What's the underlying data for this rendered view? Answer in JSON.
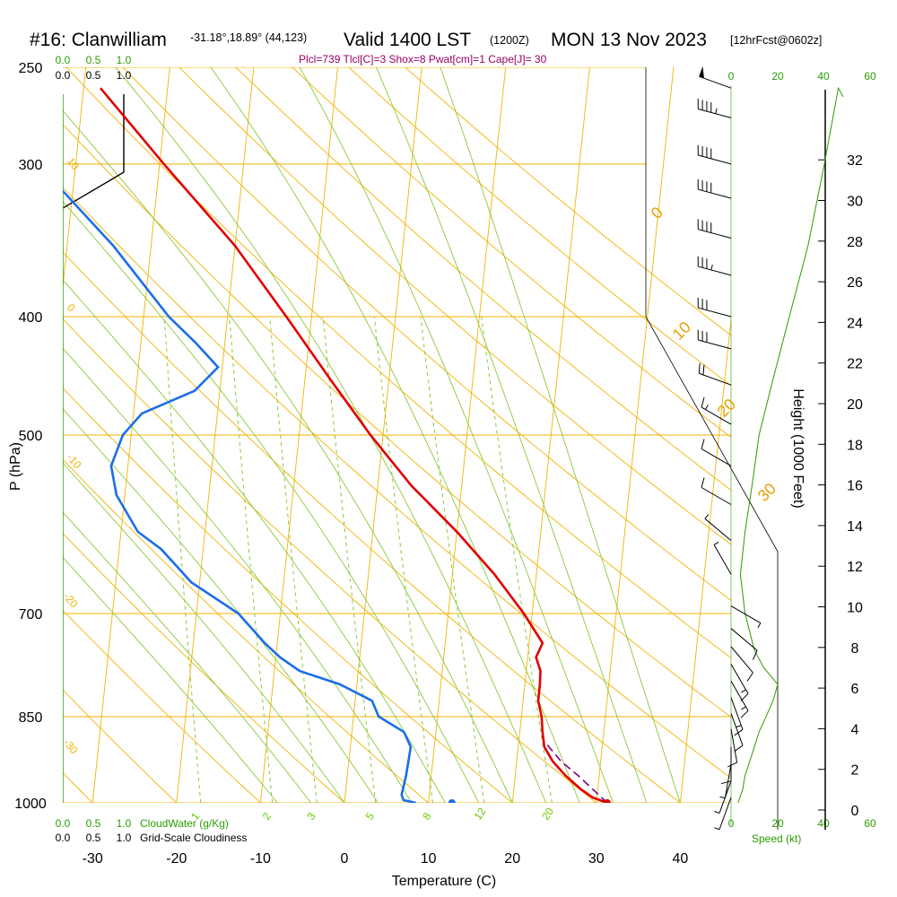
{
  "header": {
    "station": "#16: Clanwilliam",
    "location": "-31.18°,18.89° (44,123)",
    "valid": "Valid 1400 LST",
    "utc": "(1200Z)",
    "date": "MON 13 Nov 2023",
    "forecast": "[12hrFcst@0602z]",
    "params": "Plcl=739 Tlcl[C]=3 Shox=8 Pwat[cm]=1 Cape[J]= 30"
  },
  "colors": {
    "temperature": "#e00000",
    "dewpoint": "#1a6ee8",
    "parcel": "#7a0080",
    "isotherm": "#f0b400",
    "dry_adiabat": "#f0b400",
    "moist_adiabat": "#8cc83c",
    "mixing_ratio": "#8cc83c",
    "green_text": "#2a9d00",
    "wind": "#000000",
    "cloud": "#000000"
  },
  "chart_data": {
    "type": "skew-t log-p sounding",
    "x_axis": {
      "label": "Temperature (C)",
      "ticks": [
        "-30",
        "-20",
        "-10",
        "0",
        "10",
        "20",
        "30",
        "40"
      ],
      "range_at_1000hPa": [
        -36,
        44
      ]
    },
    "y_axis": {
      "label": "P (hPa)",
      "ticks": [
        "250",
        "300",
        "400",
        "500",
        "700",
        "850",
        "1000"
      ],
      "range": [
        1000,
        250
      ],
      "scale": "log"
    },
    "height_axis": {
      "label": "Height (1000 Feet)",
      "ticks": [
        "0",
        "2",
        "4",
        "6",
        "8",
        "10",
        "12",
        "14",
        "16",
        "18",
        "20",
        "22",
        "24",
        "26",
        "28",
        "30",
        "32"
      ]
    },
    "isotherm_labels": [
      "0",
      "10",
      "20",
      "30"
    ],
    "dry_adiabat_labels": [
      "10",
      "0",
      "-10",
      "-20",
      "-30"
    ],
    "mixing_ratio_labels": [
      "1",
      "2",
      "3",
      "5",
      "8",
      "12",
      "20"
    ],
    "temperature_profile": {
      "name": "Temperature",
      "points": [
        [
          1000,
          31.3
        ],
        [
          990,
          29.5
        ],
        [
          975,
          28.0
        ],
        [
          950,
          26.0
        ],
        [
          925,
          24.3
        ],
        [
          900,
          23.1
        ],
        [
          875,
          22.7
        ],
        [
          850,
          22.4
        ],
        [
          825,
          21.8
        ],
        [
          800,
          21.8
        ],
        [
          780,
          21.7
        ],
        [
          760,
          21.0
        ],
        [
          740,
          21.6
        ],
        [
          700,
          19.0
        ],
        [
          650,
          15.0
        ],
        [
          600,
          10.0
        ],
        [
          550,
          4.0
        ],
        [
          500,
          -1.5
        ],
        [
          450,
          -7.0
        ],
        [
          400,
          -13.0
        ],
        [
          350,
          -20.0
        ],
        [
          300,
          -29.5
        ],
        [
          260,
          -38.0
        ]
      ]
    },
    "dewpoint_profile": {
      "name": "Dewpoint",
      "points": [
        [
          1000,
          8.5
        ],
        [
          995,
          7.0
        ],
        [
          985,
          6.7
        ],
        [
          950,
          7.0
        ],
        [
          900,
          7.2
        ],
        [
          875,
          6.2
        ],
        [
          850,
          3.0
        ],
        [
          825,
          2.0
        ],
        [
          800,
          -2.0
        ],
        [
          780,
          -7.0
        ],
        [
          760,
          -9.5
        ],
        [
          740,
          -11.5
        ],
        [
          700,
          -15.0
        ],
        [
          660,
          -21.0
        ],
        [
          620,
          -25.0
        ],
        [
          600,
          -28.0
        ],
        [
          560,
          -31.0
        ],
        [
          530,
          -32.0
        ],
        [
          500,
          -31.0
        ],
        [
          480,
          -29.0
        ],
        [
          460,
          -23.0
        ],
        [
          440,
          -20.5
        ],
        [
          420,
          -23.5
        ],
        [
          400,
          -27.0
        ],
        [
          350,
          -34.5
        ],
        [
          300,
          -44.5
        ],
        [
          260,
          -53.0
        ]
      ]
    },
    "parcel_profile": {
      "name": "Parcel",
      "points": [
        [
          1000,
          31.3
        ],
        [
          950,
          27.5
        ],
        [
          925,
          25.3
        ],
        [
          890,
          23.0
        ]
      ]
    },
    "surface_dewpoint_marker": 12.8,
    "cloud_water_axis": {
      "label": "CloudWater (g/Kg)",
      "ticks": [
        "0.0",
        "0.5",
        "1.0"
      ]
    },
    "cloudiness_axis": {
      "label": "Grid-Scale Cloudiness",
      "ticks": [
        "0.0",
        "0.5",
        "1.0"
      ]
    },
    "wind_speed_axis": {
      "label": "Speed (kt)",
      "ticks": [
        "0",
        "20",
        "40",
        "60"
      ]
    },
    "wind_speed_profile_kt": [
      [
        1000,
        3
      ],
      [
        975,
        5
      ],
      [
        950,
        6
      ],
      [
        925,
        8
      ],
      [
        900,
        10
      ],
      [
        875,
        12
      ],
      [
        850,
        15
      ],
      [
        825,
        18
      ],
      [
        800,
        20
      ],
      [
        775,
        14
      ],
      [
        750,
        10
      ],
      [
        700,
        6
      ],
      [
        650,
        4
      ],
      [
        600,
        6
      ],
      [
        550,
        9
      ],
      [
        500,
        12
      ],
      [
        450,
        18
      ],
      [
        400,
        25
      ],
      [
        350,
        33
      ],
      [
        300,
        40
      ],
      [
        260,
        46
      ]
    ],
    "wind_barbs": [
      {
        "p": 260,
        "dir": 290,
        "kt": 50
      },
      {
        "p": 275,
        "dir": 285,
        "kt": 45
      },
      {
        "p": 300,
        "dir": 285,
        "kt": 40
      },
      {
        "p": 320,
        "dir": 285,
        "kt": 40
      },
      {
        "p": 345,
        "dir": 285,
        "kt": 40
      },
      {
        "p": 370,
        "dir": 285,
        "kt": 35
      },
      {
        "p": 400,
        "dir": 285,
        "kt": 30
      },
      {
        "p": 425,
        "dir": 285,
        "kt": 30
      },
      {
        "p": 455,
        "dir": 290,
        "kt": 20
      },
      {
        "p": 490,
        "dir": 300,
        "kt": 15
      },
      {
        "p": 530,
        "dir": 300,
        "kt": 10
      },
      {
        "p": 570,
        "dir": 300,
        "kt": 10
      },
      {
        "p": 610,
        "dir": 310,
        "kt": 5
      },
      {
        "p": 650,
        "dir": 330,
        "kt": 5
      },
      {
        "p": 690,
        "dir": 120,
        "kt": 5
      },
      {
        "p": 720,
        "dir": 130,
        "kt": 10
      },
      {
        "p": 745,
        "dir": 140,
        "kt": 10
      },
      {
        "p": 770,
        "dir": 150,
        "kt": 15
      },
      {
        "p": 795,
        "dir": 150,
        "kt": 15
      },
      {
        "p": 820,
        "dir": 160,
        "kt": 15
      },
      {
        "p": 845,
        "dir": 160,
        "kt": 10
      },
      {
        "p": 870,
        "dir": 170,
        "kt": 10
      },
      {
        "p": 900,
        "dir": 180,
        "kt": 10
      },
      {
        "p": 930,
        "dir": 190,
        "kt": 5
      },
      {
        "p": 960,
        "dir": 200,
        "kt": 5
      },
      {
        "p": 990,
        "dir": 200,
        "kt": 5
      }
    ]
  }
}
